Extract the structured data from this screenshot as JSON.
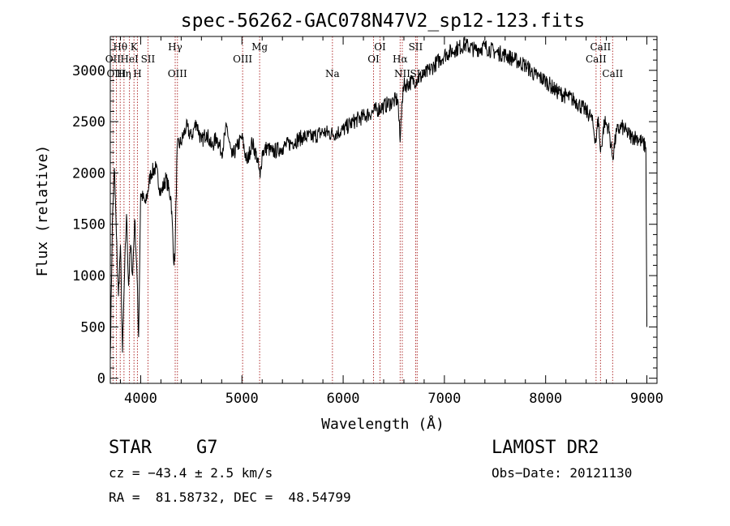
{
  "chart_data": {
    "type": "line",
    "title": "spec-56262-GAC078N47V2_sp12-123.fits",
    "xlabel": "Wavelength (Å)",
    "ylabel": "Flux (relative)",
    "xlim": [
      3700,
      9100
    ],
    "ylim": [
      -50,
      3330
    ],
    "x_ticks": [
      4000,
      5000,
      6000,
      7000,
      8000,
      9000
    ],
    "x_tick_labels": [
      "4000",
      "5000",
      "6000",
      "7000",
      "8000",
      "9000"
    ],
    "y_ticks": [
      0,
      500,
      1000,
      1500,
      2000,
      2500,
      3000
    ],
    "y_tick_labels": [
      "0",
      "500",
      "1000",
      "1500",
      "2000",
      "2500",
      "3000"
    ],
    "series_color": "#000000",
    "line_marker_color": "#b03030",
    "spectrum": {
      "x": [
        3700,
        3720,
        3740,
        3760,
        3780,
        3800,
        3820,
        3840,
        3860,
        3880,
        3900,
        3920,
        3940,
        3960,
        3980,
        4000,
        4050,
        4100,
        4150,
        4200,
        4250,
        4300,
        4330,
        4340,
        4360,
        4400,
        4450,
        4500,
        4550,
        4600,
        4650,
        4700,
        4750,
        4800,
        4850,
        4900,
        4950,
        5000,
        5050,
        5100,
        5150,
        5180,
        5200,
        5250,
        5300,
        5400,
        5500,
        5600,
        5700,
        5800,
        5900,
        6000,
        6100,
        6200,
        6300,
        6400,
        6500,
        6540,
        6563,
        6580,
        6600,
        6700,
        6800,
        6900,
        7000,
        7100,
        7200,
        7300,
        7400,
        7500,
        7600,
        7700,
        7800,
        7900,
        8000,
        8100,
        8200,
        8300,
        8400,
        8450,
        8498,
        8520,
        8542,
        8580,
        8620,
        8662,
        8700,
        8750,
        8800,
        8850,
        8900,
        8950,
        8990,
        9000
      ],
      "y": [
        200,
        1500,
        2050,
        1400,
        800,
        1300,
        250,
        1000,
        1600,
        900,
        1300,
        1000,
        1550,
        1100,
        400,
        1800,
        1700,
        2000,
        2050,
        1800,
        1950,
        1750,
        1100,
        1250,
        2250,
        2300,
        2450,
        2350,
        2500,
        2300,
        2400,
        2250,
        2350,
        2200,
        2450,
        2150,
        2250,
        2350,
        2100,
        2300,
        2150,
        1950,
        2200,
        2250,
        2200,
        2250,
        2300,
        2350,
        2350,
        2400,
        2380,
        2420,
        2500,
        2550,
        2600,
        2650,
        2700,
        2720,
        2300,
        2700,
        2850,
        2900,
        2950,
        3050,
        3150,
        3200,
        3250,
        3200,
        3230,
        3180,
        3150,
        3100,
        3050,
        2950,
        2900,
        2800,
        2750,
        2700,
        2600,
        2550,
        2300,
        2550,
        2200,
        2500,
        2450,
        2150,
        2400,
        2450,
        2400,
        2350,
        2350,
        2300,
        2250,
        500
      ]
    },
    "lines": [
      {
        "label": "Hθ",
        "x": 3798,
        "row": 1
      },
      {
        "label": "OII",
        "x": 3727,
        "row": 2
      },
      {
        "label": "HeI",
        "x": 3889,
        "row": 2
      },
      {
        "label": "OIII",
        "x": 3760,
        "row": 3
      },
      {
        "label": "Hη",
        "x": 3835,
        "row": 3
      },
      {
        "label": "K",
        "x": 3934,
        "row": 1
      },
      {
        "label": "H",
        "x": 3968,
        "row": 3
      },
      {
        "label": "SII",
        "x": 4072,
        "row": 2
      },
      {
        "label": "Hγ",
        "x": 4341,
        "row": 1
      },
      {
        "label": "OIII",
        "x": 4363,
        "row": 3
      },
      {
        "label": "OIII",
        "x": 5007,
        "row": 2
      },
      {
        "label": "Mg",
        "x": 5175,
        "row": 1
      },
      {
        "label": "Na",
        "x": 5894,
        "row": 3
      },
      {
        "label": "OI",
        "x": 6300,
        "row": 2
      },
      {
        "label": "OI",
        "x": 6364,
        "row": 1
      },
      {
        "label": "Hα",
        "x": 6563,
        "row": 2
      },
      {
        "label": "NII",
        "x": 6584,
        "row": 3
      },
      {
        "label": "SII",
        "x": 6716,
        "row": 1
      },
      {
        "label": "SII",
        "x": 6731,
        "row": 3
      },
      {
        "label": "CaII",
        "x": 8498,
        "row": 2
      },
      {
        "label": "CaII",
        "x": 8542,
        "row": 1
      },
      {
        "label": "CaII",
        "x": 8662,
        "row": 3
      }
    ]
  },
  "info": {
    "object_class": "STAR",
    "subclass": "G7",
    "survey": "LAMOST DR2",
    "cz": "cz = −43.4 ± 2.5 km/s",
    "obs_date": "Obs−Date: 20121130",
    "coords": "RA =  81.58732, DEC =  48.54799"
  }
}
